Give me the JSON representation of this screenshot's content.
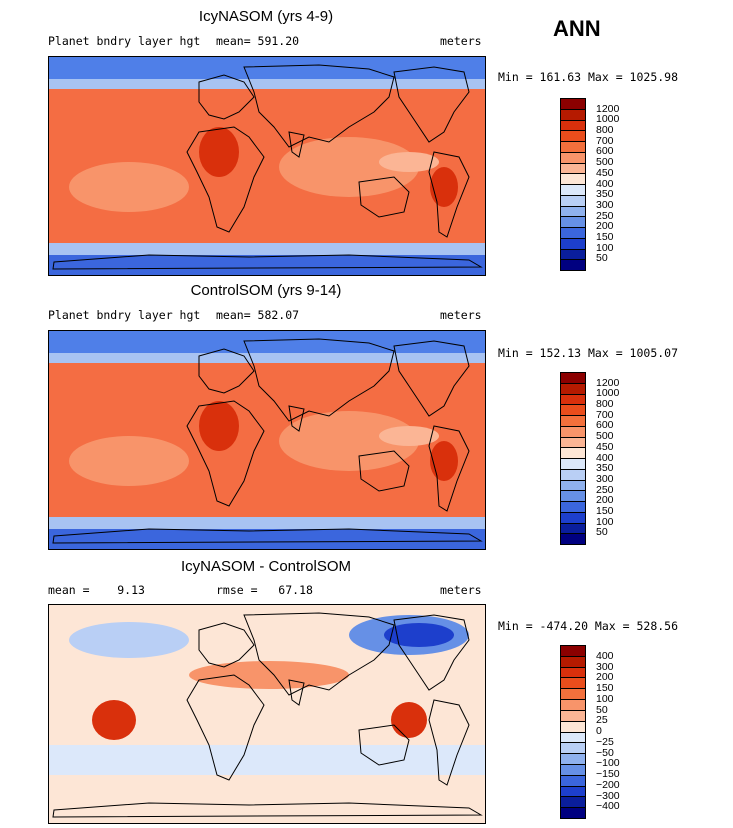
{
  "season": "ANN",
  "panels": [
    {
      "title": "IcyNASOM (yrs 4-9)",
      "left_label": "Planet bndry layer hgt",
      "center_label": "mean= 591.20",
      "right_label": "meters",
      "minmax": "Min = 161.63 Max = 1025.98",
      "colorbar": {
        "labels": [
          "1200",
          "1000",
          "800",
          "700",
          "600",
          "500",
          "450",
          "400",
          "350",
          "300",
          "250",
          "200",
          "150",
          "100",
          "50"
        ],
        "colors": [
          "#8b0000",
          "#b51a00",
          "#d9300c",
          "#ea4d1c",
          "#f3703c",
          "#f8946a",
          "#fbb595",
          "#fde6d6",
          "#dce8fa",
          "#b9cff5",
          "#8fb1ee",
          "#6690e6",
          "#3b66dd",
          "#1d3fcc",
          "#0a1e9c",
          "#000080"
        ]
      },
      "map_theme": "positive"
    },
    {
      "title": "ControlSOM (yrs 9-14)",
      "left_label": "Planet bndry layer hgt",
      "center_label": "mean= 582.07",
      "right_label": "meters",
      "minmax": "Min = 152.13 Max = 1005.07",
      "colorbar": {
        "labels": [
          "1200",
          "1000",
          "800",
          "700",
          "600",
          "500",
          "450",
          "400",
          "350",
          "300",
          "250",
          "200",
          "150",
          "100",
          "50"
        ],
        "colors": [
          "#8b0000",
          "#b51a00",
          "#d9300c",
          "#ea4d1c",
          "#f3703c",
          "#f8946a",
          "#fbb595",
          "#fde6d6",
          "#dce8fa",
          "#b9cff5",
          "#8fb1ee",
          "#6690e6",
          "#3b66dd",
          "#1d3fcc",
          "#0a1e9c",
          "#000080"
        ]
      },
      "map_theme": "positive"
    },
    {
      "title": "IcyNASOM - ControlSOM",
      "left_label": "mean =    9.13",
      "center_label": "rmse =   67.18",
      "right_label": "meters",
      "minmax": "Min = -474.20 Max = 528.56",
      "colorbar": {
        "labels": [
          "400",
          "300",
          "200",
          "150",
          "100",
          "50",
          "25",
          "0",
          "−25",
          "−50",
          "−100",
          "−150",
          "−200",
          "−300",
          "−400"
        ],
        "colors": [
          "#8b0000",
          "#b51a00",
          "#d9300c",
          "#ea4d1c",
          "#f3703c",
          "#f8946a",
          "#fbb595",
          "#fde6d6",
          "#dce8fa",
          "#b9cff5",
          "#8fb1ee",
          "#6690e6",
          "#3b66dd",
          "#1d3fcc",
          "#0a1e9c",
          "#000080"
        ]
      },
      "map_theme": "difference"
    }
  ]
}
